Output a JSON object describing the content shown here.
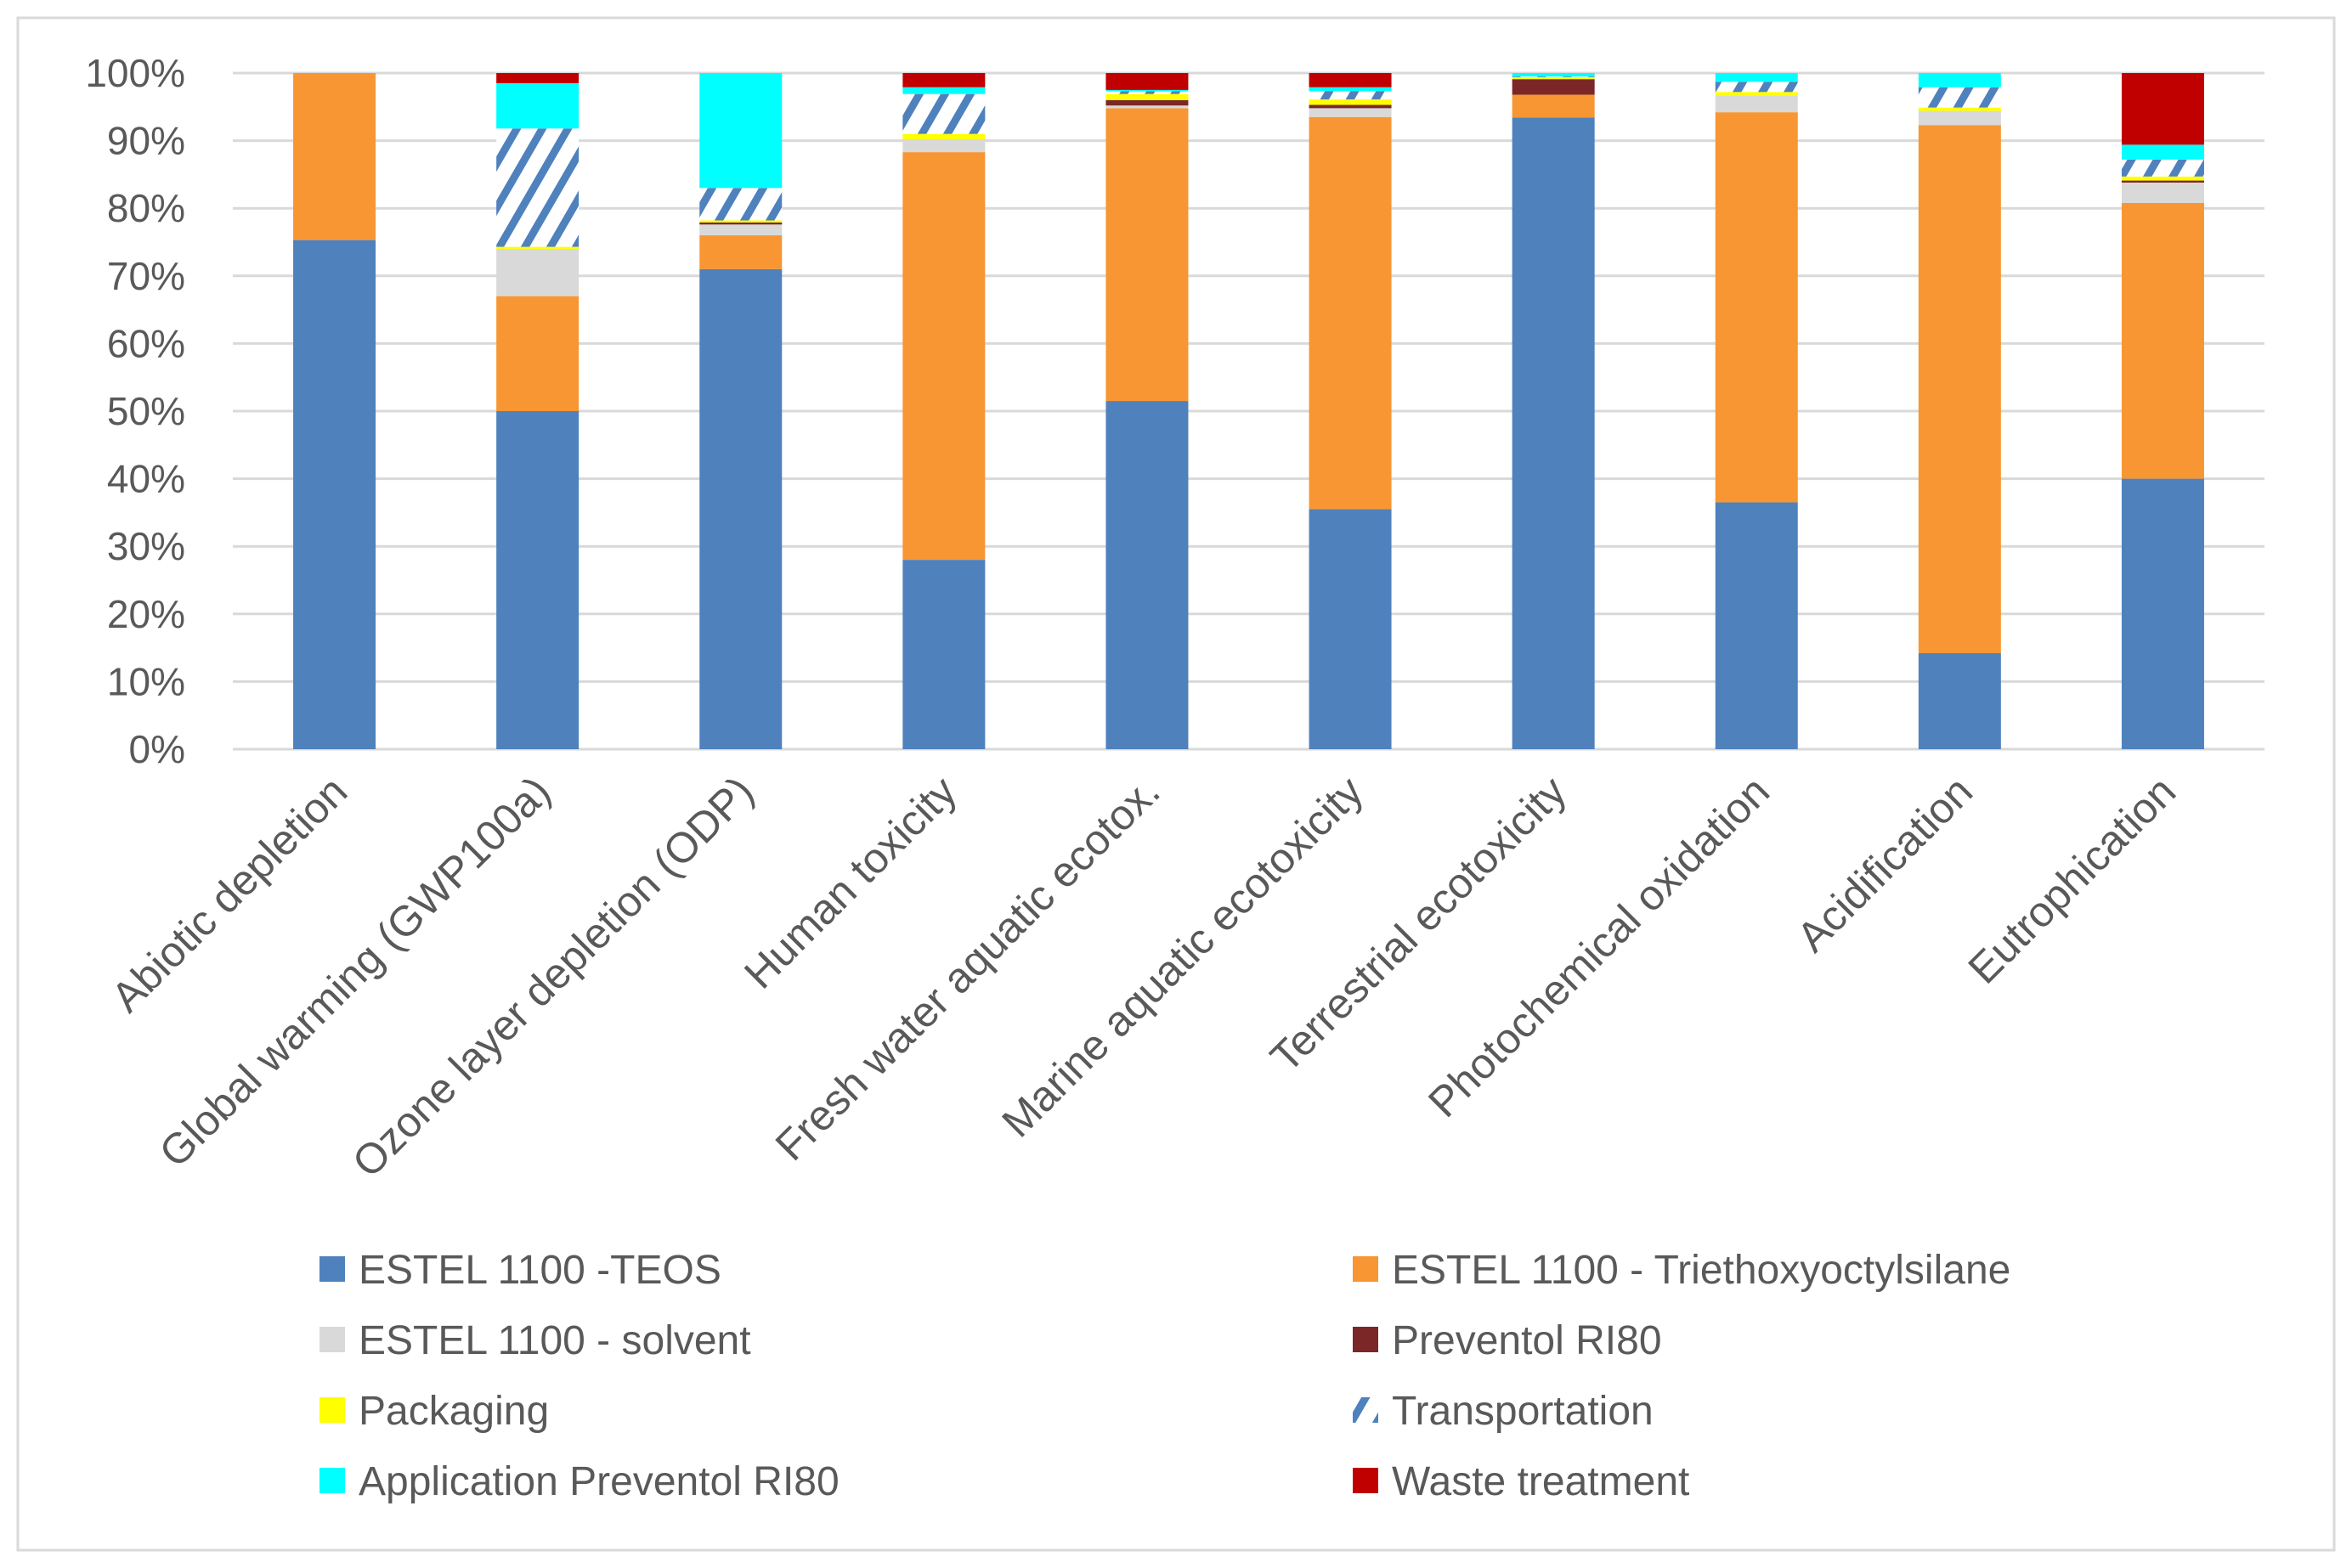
{
  "chart_data": {
    "type": "bar",
    "stacked": true,
    "percent": true,
    "title": "",
    "xlabel": "",
    "ylabel": "",
    "ylim": [
      0,
      100
    ],
    "yticks": [
      "0%",
      "10%",
      "20%",
      "30%",
      "40%",
      "50%",
      "60%",
      "70%",
      "80%",
      "90%",
      "100%"
    ],
    "grid": true,
    "legend_position": "bottom",
    "categories": [
      "Abiotic depletion",
      "Global warming (GWP100a)",
      "Ozone layer depletion (ODP)",
      "Human toxicity",
      "Fresh water aquatic ecotox.",
      "Marine aquatic ecotoxicity",
      "Terrestrial ecotoxicity",
      "Photochemical oxidation",
      "Acidification",
      "Eutrophication"
    ],
    "series": [
      {
        "name": "ESTEL 1100 -TEOS",
        "color": "#4F81BD",
        "values": [
          75.3,
          50,
          71,
          28,
          51.5,
          35.5,
          93.4,
          36.5,
          14.2,
          40
        ]
      },
      {
        "name": "ESTEL 1100 - Triethoxyoctylsilane",
        "color": "#F79632",
        "values": [
          24.7,
          17,
          5,
          60.3,
          43.3,
          58,
          3.4,
          57.7,
          78.1,
          40.8
        ]
      },
      {
        "name": "ESTEL 1100 - solvent",
        "color": "#D9D9D9",
        "values": [
          0,
          7,
          1.6,
          1.9,
          0.4,
          1.3,
          0,
          2.5,
          2.1,
          3.0
        ]
      },
      {
        "name": "Preventol RI80",
        "color": "#7B2727",
        "values": [
          0,
          0,
          0.3,
          0,
          0.8,
          0.5,
          2.3,
          0,
          0,
          0.3
        ]
      },
      {
        "name": "Packaging",
        "color": "#FFFF00",
        "values": [
          0,
          0.3,
          0.3,
          0.8,
          0.9,
          0.8,
          0.3,
          0.5,
          0.5,
          0.6
        ]
      },
      {
        "name": "Transportation",
        "color": "#4F81BD",
        "pattern": "hatch",
        "values": [
          0,
          17.5,
          4.8,
          5.9,
          0.4,
          1.2,
          0.1,
          1.5,
          3.0,
          2.5
        ]
      },
      {
        "name": "Application Preventol RI80",
        "color": "#00FFFF",
        "values": [
          0,
          6.7,
          17,
          1.0,
          0.2,
          0.6,
          0.5,
          1.3,
          2.1,
          2.2
        ]
      },
      {
        "name": "Waste treatment",
        "color": "#C00000",
        "values": [
          0,
          1.5,
          0,
          2.1,
          2.5,
          2.1,
          0,
          0,
          0,
          10.6
        ]
      }
    ]
  }
}
